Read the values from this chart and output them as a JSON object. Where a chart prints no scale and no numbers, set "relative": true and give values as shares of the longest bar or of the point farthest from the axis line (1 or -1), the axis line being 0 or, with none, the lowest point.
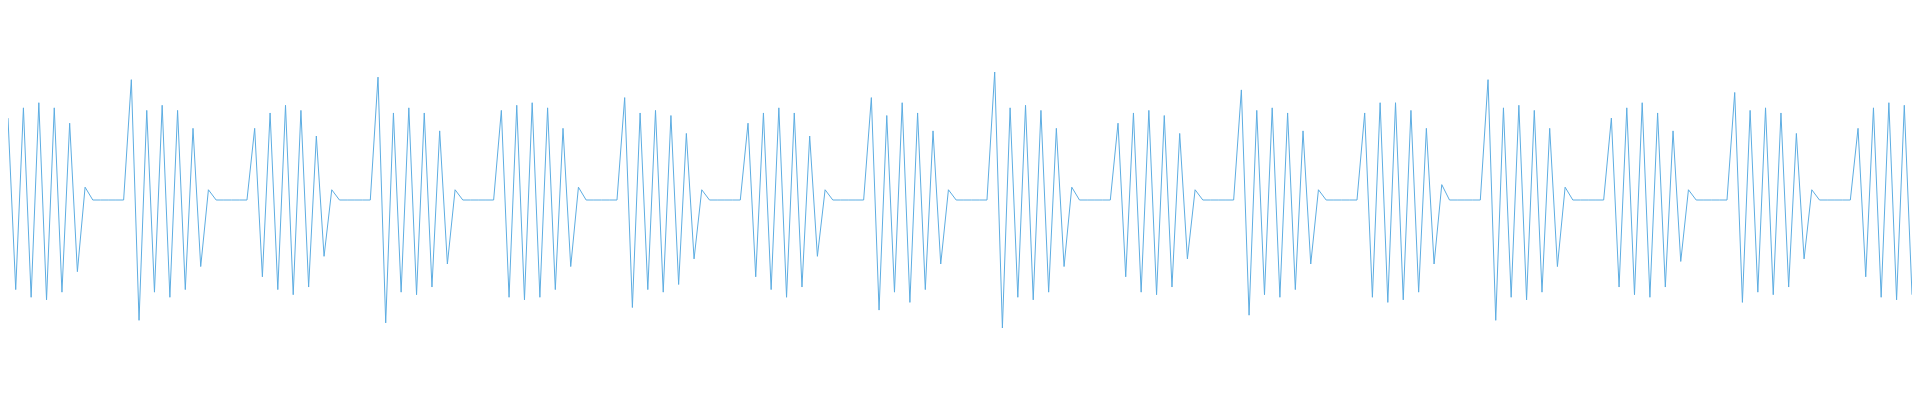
{
  "chart_data": {
    "type": "line",
    "relative": true,
    "color": "#5dade2",
    "categories": [
      null,
      null,
      null,
      null,
      null,
      null,
      null,
      null,
      null,
      null,
      null,
      null,
      null,
      null,
      null,
      null,
      null,
      null,
      null,
      null,
      null,
      null,
      null,
      null,
      null,
      null,
      null,
      null,
      null,
      null,
      null,
      null,
      null,
      null,
      null,
      null,
      null,
      null,
      null,
      null,
      null,
      null,
      null,
      null,
      null,
      null,
      null,
      null,
      null,
      null,
      null,
      null,
      null,
      null,
      null,
      null,
      null,
      null,
      null,
      null,
      null,
      null,
      null,
      null,
      null,
      null,
      null,
      null,
      null,
      null,
      null,
      null,
      null,
      null,
      null,
      null,
      null,
      null,
      null,
      null,
      null,
      null,
      null,
      null,
      null,
      null,
      null,
      null,
      null,
      null,
      null,
      null,
      null,
      null,
      null,
      null,
      null,
      null,
      null,
      null,
      null,
      null,
      null,
      null,
      null,
      null,
      null,
      null,
      null,
      null,
      null,
      null,
      null,
      null,
      null,
      null,
      null,
      null,
      null,
      null,
      null,
      null,
      null,
      null,
      null,
      null,
      null,
      null,
      null,
      null,
      null,
      null,
      null,
      null,
      null,
      null,
      null,
      null,
      null,
      null,
      null,
      null,
      null,
      null,
      null,
      null,
      null,
      null,
      null,
      null,
      null,
      null,
      null,
      null,
      null,
      null,
      null,
      null,
      null,
      null,
      null,
      null,
      null,
      null,
      null,
      null,
      null,
      null,
      null,
      null,
      null,
      null,
      null,
      null,
      null,
      null,
      null,
      null,
      null,
      null,
      null,
      null,
      null,
      null,
      null,
      null,
      null,
      null,
      null,
      null,
      null,
      null,
      null,
      null,
      null,
      null,
      null,
      null,
      null,
      null,
      null,
      null,
      null,
      null,
      null,
      null,
      null,
      null,
      null,
      null,
      null,
      null,
      null,
      null,
      null,
      null,
      null,
      null,
      null,
      null,
      null,
      null,
      null,
      null,
      null,
      null,
      null,
      null,
      null,
      null,
      null,
      null,
      null,
      null,
      null,
      null,
      null,
      null,
      null,
      null,
      null,
      null,
      null,
      null,
      null,
      null,
      null,
      null
    ],
    "values": [
      0.82,
      0.15,
      0.86,
      0.12,
      0.88,
      0.11,
      0.86,
      0.14,
      0.8,
      0.22,
      0.55,
      0.5,
      0.5,
      0.5,
      0.5,
      0.5,
      0.97,
      0.03,
      0.85,
      0.14,
      0.87,
      0.12,
      0.85,
      0.15,
      0.78,
      0.24,
      0.54,
      0.5,
      0.5,
      0.5,
      0.5,
      0.5,
      0.78,
      0.2,
      0.84,
      0.15,
      0.87,
      0.13,
      0.85,
      0.16,
      0.75,
      0.28,
      0.54,
      0.5,
      0.5,
      0.5,
      0.5,
      0.5,
      0.98,
      0.02,
      0.84,
      0.14,
      0.86,
      0.13,
      0.84,
      0.16,
      0.77,
      0.25,
      0.54,
      0.5,
      0.5,
      0.5,
      0.5,
      0.5,
      0.85,
      0.12,
      0.87,
      0.11,
      0.88,
      0.12,
      0.86,
      0.15,
      0.78,
      0.24,
      0.55,
      0.5,
      0.5,
      0.5,
      0.5,
      0.5,
      0.9,
      0.08,
      0.84,
      0.15,
      0.85,
      0.14,
      0.83,
      0.17,
      0.76,
      0.27,
      0.54,
      0.5,
      0.5,
      0.5,
      0.5,
      0.5,
      0.8,
      0.2,
      0.84,
      0.15,
      0.86,
      0.12,
      0.84,
      0.16,
      0.75,
      0.28,
      0.54,
      0.5,
      0.5,
      0.5,
      0.5,
      0.5,
      0.9,
      0.07,
      0.83,
      0.14,
      0.88,
      0.1,
      0.84,
      0.15,
      0.77,
      0.25,
      0.54,
      0.5,
      0.5,
      0.5,
      0.5,
      0.5,
      1,
      0,
      0.86,
      0.12,
      0.87,
      0.11,
      0.85,
      0.14,
      0.78,
      0.24,
      0.55,
      0.5,
      0.5,
      0.5,
      0.5,
      0.5,
      0.8,
      0.2,
      0.84,
      0.14,
      0.85,
      0.13,
      0.83,
      0.16,
      0.76,
      0.27,
      0.54,
      0.5,
      0.5,
      0.5,
      0.5,
      0.5,
      0.93,
      0.05,
      0.85,
      0.13,
      0.86,
      0.12,
      0.84,
      0.15,
      0.77,
      0.25,
      0.54,
      0.5,
      0.5,
      0.5,
      0.5,
      0.5,
      0.84,
      0.12,
      0.88,
      0.1,
      0.88,
      0.11,
      0.85,
      0.14,
      0.78,
      0.25,
      0.56,
      0.5,
      0.5,
      0.5,
      0.5,
      0.5,
      0.97,
      0.03,
      0.86,
      0.12,
      0.87,
      0.11,
      0.85,
      0.14,
      0.78,
      0.24,
      0.55,
      0.5,
      0.5,
      0.5,
      0.5,
      0.5,
      0.82,
      0.16,
      0.86,
      0.13,
      0.88,
      0.12,
      0.84,
      0.16,
      0.77,
      0.26,
      0.54,
      0.5,
      0.5,
      0.5,
      0.5,
      0.5,
      0.92,
      0.1,
      0.85,
      0.14,
      0.86,
      0.13,
      0.84,
      0.16,
      0.76,
      0.27,
      0.54,
      0.5,
      0.5,
      0.5,
      0.5,
      0.5,
      0.78,
      0.2,
      0.86,
      0.12,
      0.88,
      0.11,
      0.87,
      0.13
    ]
  }
}
